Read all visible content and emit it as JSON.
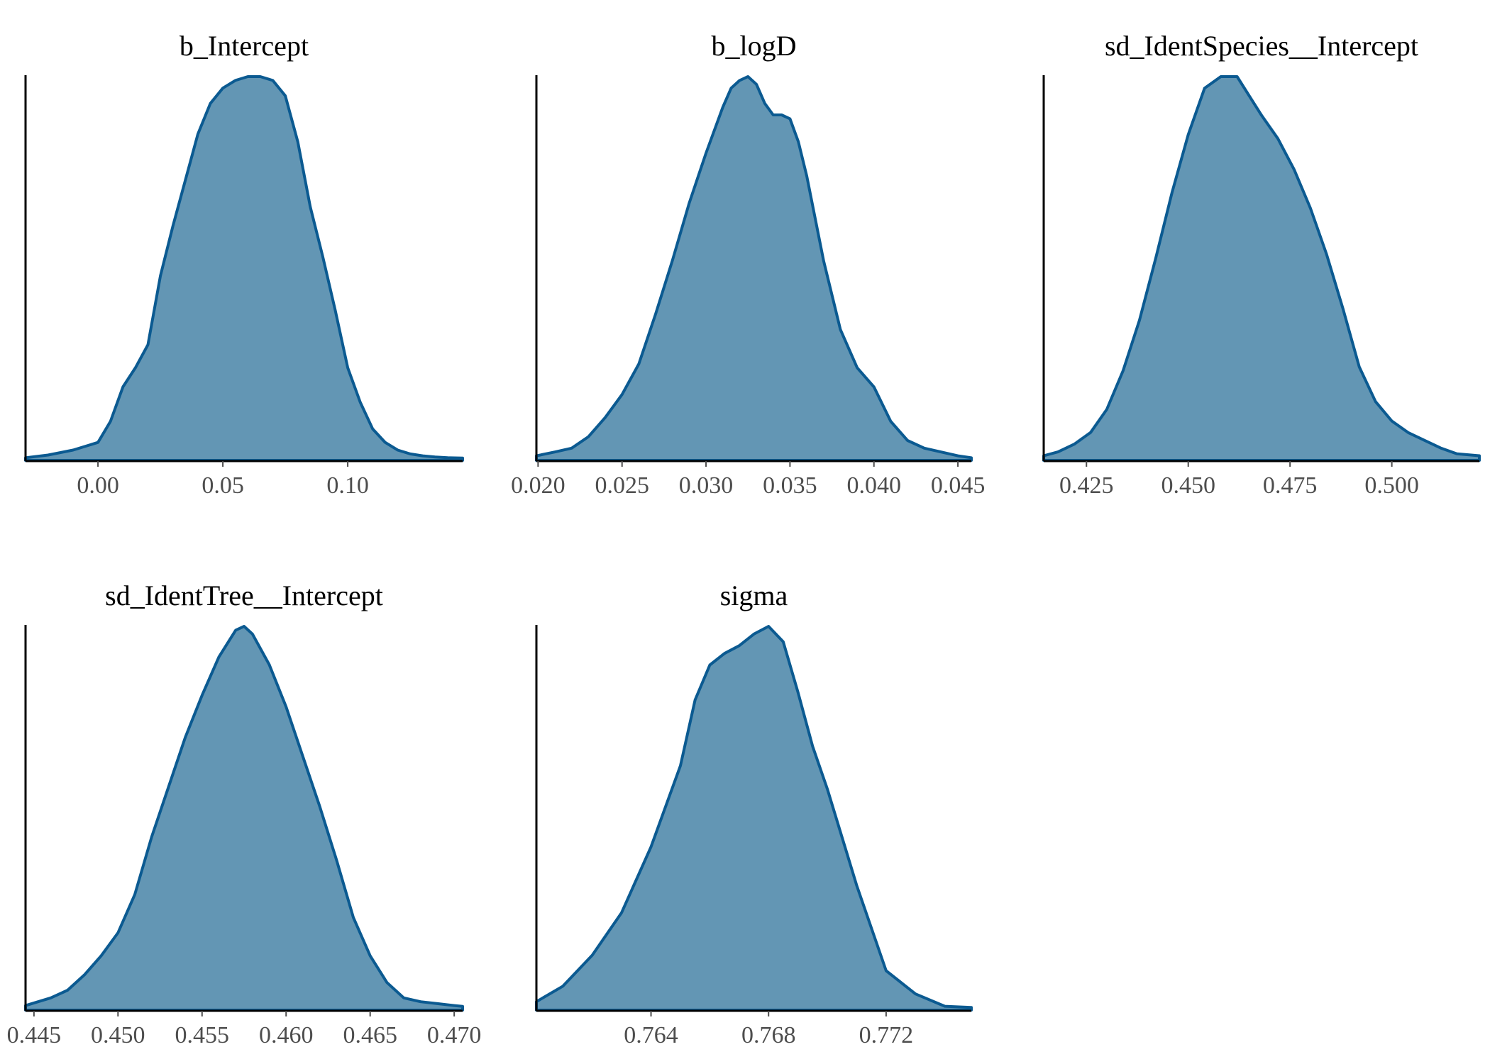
{
  "colors": {
    "fill": "#6396b4",
    "line": "#0b5a91",
    "axis": "#000000",
    "tick_text": "#4d4d4d"
  },
  "chart_data": [
    {
      "type": "area",
      "title": "b_Intercept",
      "xlim": [
        -0.029,
        0.146
      ],
      "ticks": [
        0.0,
        0.05,
        0.1
      ],
      "tick_labels": [
        "0.00",
        "0.05",
        "0.10"
      ],
      "density": {
        "x": [
          -0.029,
          -0.02,
          -0.01,
          0.0,
          0.005,
          0.01,
          0.015,
          0.02,
          0.025,
          0.03,
          0.035,
          0.04,
          0.045,
          0.05,
          0.055,
          0.06,
          0.065,
          0.07,
          0.075,
          0.08,
          0.085,
          0.09,
          0.095,
          0.1,
          0.105,
          0.11,
          0.115,
          0.12,
          0.125,
          0.13,
          0.135,
          0.14,
          0.146
        ],
        "y": [
          0.005,
          0.012,
          0.025,
          0.045,
          0.1,
          0.19,
          0.24,
          0.3,
          0.48,
          0.61,
          0.73,
          0.85,
          0.93,
          0.97,
          0.99,
          1.0,
          1.0,
          0.99,
          0.95,
          0.83,
          0.66,
          0.53,
          0.39,
          0.24,
          0.15,
          0.08,
          0.045,
          0.025,
          0.015,
          0.01,
          0.007,
          0.005,
          0.004
        ]
      }
    },
    {
      "type": "area",
      "title": "b_logD",
      "xlim": [
        0.0199,
        0.0458
      ],
      "ticks": [
        0.02,
        0.025,
        0.03,
        0.035,
        0.04,
        0.045
      ],
      "tick_labels": [
        "0.020",
        "0.025",
        "0.030",
        "0.035",
        "0.040",
        "0.045"
      ],
      "density": {
        "x": [
          0.0199,
          0.021,
          0.022,
          0.023,
          0.024,
          0.025,
          0.026,
          0.027,
          0.028,
          0.029,
          0.03,
          0.031,
          0.0315,
          0.032,
          0.0325,
          0.033,
          0.0335,
          0.034,
          0.0345,
          0.035,
          0.0355,
          0.036,
          0.037,
          0.038,
          0.039,
          0.04,
          0.041,
          0.042,
          0.043,
          0.044,
          0.045,
          0.0458
        ],
        "y": [
          0.01,
          0.02,
          0.03,
          0.06,
          0.11,
          0.17,
          0.25,
          0.38,
          0.52,
          0.67,
          0.8,
          0.92,
          0.97,
          0.99,
          1.0,
          0.98,
          0.93,
          0.9,
          0.9,
          0.89,
          0.83,
          0.74,
          0.52,
          0.34,
          0.24,
          0.19,
          0.1,
          0.05,
          0.03,
          0.02,
          0.01,
          0.005
        ]
      }
    },
    {
      "type": "area",
      "title": "sd_IdentSpecies__Intercept",
      "xlim": [
        0.4145,
        0.5215
      ],
      "ticks": [
        0.425,
        0.45,
        0.475,
        0.5
      ],
      "tick_labels": [
        "0.425",
        "0.450",
        "0.475",
        "0.500"
      ],
      "density": {
        "x": [
          0.4145,
          0.418,
          0.422,
          0.426,
          0.43,
          0.434,
          0.438,
          0.442,
          0.446,
          0.45,
          0.454,
          0.458,
          0.462,
          0.465,
          0.468,
          0.472,
          0.476,
          0.48,
          0.484,
          0.488,
          0.492,
          0.496,
          0.5,
          0.504,
          0.508,
          0.512,
          0.516,
          0.5215
        ],
        "y": [
          0.01,
          0.02,
          0.04,
          0.07,
          0.13,
          0.23,
          0.36,
          0.52,
          0.69,
          0.84,
          0.96,
          0.99,
          0.99,
          0.94,
          0.89,
          0.83,
          0.75,
          0.65,
          0.53,
          0.39,
          0.24,
          0.15,
          0.1,
          0.07,
          0.05,
          0.03,
          0.015,
          0.01
        ]
      }
    },
    {
      "type": "area",
      "title": "sd_IdentTree__Intercept",
      "xlim": [
        0.4445,
        0.4705
      ],
      "ticks": [
        0.445,
        0.45,
        0.455,
        0.46,
        0.465,
        0.47
      ],
      "tick_labels": [
        "0.445",
        "0.450",
        "0.455",
        "0.460",
        "0.465",
        "0.470"
      ],
      "density": {
        "x": [
          0.4445,
          0.446,
          0.447,
          0.448,
          0.449,
          0.45,
          0.451,
          0.452,
          0.453,
          0.454,
          0.455,
          0.456,
          0.457,
          0.4575,
          0.458,
          0.459,
          0.46,
          0.461,
          0.462,
          0.463,
          0.464,
          0.465,
          0.466,
          0.467,
          0.468,
          0.469,
          0.47,
          0.4705
        ],
        "y": [
          0.01,
          0.03,
          0.05,
          0.09,
          0.14,
          0.2,
          0.3,
          0.45,
          0.58,
          0.71,
          0.82,
          0.92,
          0.99,
          1.0,
          0.98,
          0.9,
          0.79,
          0.66,
          0.53,
          0.39,
          0.24,
          0.14,
          0.07,
          0.03,
          0.02,
          0.015,
          0.01,
          0.008
        ]
      }
    },
    {
      "type": "area",
      "title": "sigma",
      "xlim": [
        0.7601,
        0.7749
      ],
      "ticks": [
        0.764,
        0.768,
        0.772
      ],
      "tick_labels": [
        "0.764",
        "0.768",
        "0.772"
      ],
      "density": {
        "x": [
          0.7601,
          0.761,
          0.762,
          0.763,
          0.764,
          0.765,
          0.7655,
          0.766,
          0.7665,
          0.767,
          0.7675,
          0.768,
          0.7685,
          0.769,
          0.7695,
          0.77,
          0.771,
          0.772,
          0.773,
          0.774,
          0.7749
        ],
        "y": [
          0.02,
          0.06,
          0.14,
          0.25,
          0.42,
          0.63,
          0.8,
          0.89,
          0.92,
          0.94,
          0.97,
          0.99,
          0.95,
          0.82,
          0.68,
          0.57,
          0.32,
          0.1,
          0.04,
          0.008,
          0.005
        ]
      }
    }
  ]
}
